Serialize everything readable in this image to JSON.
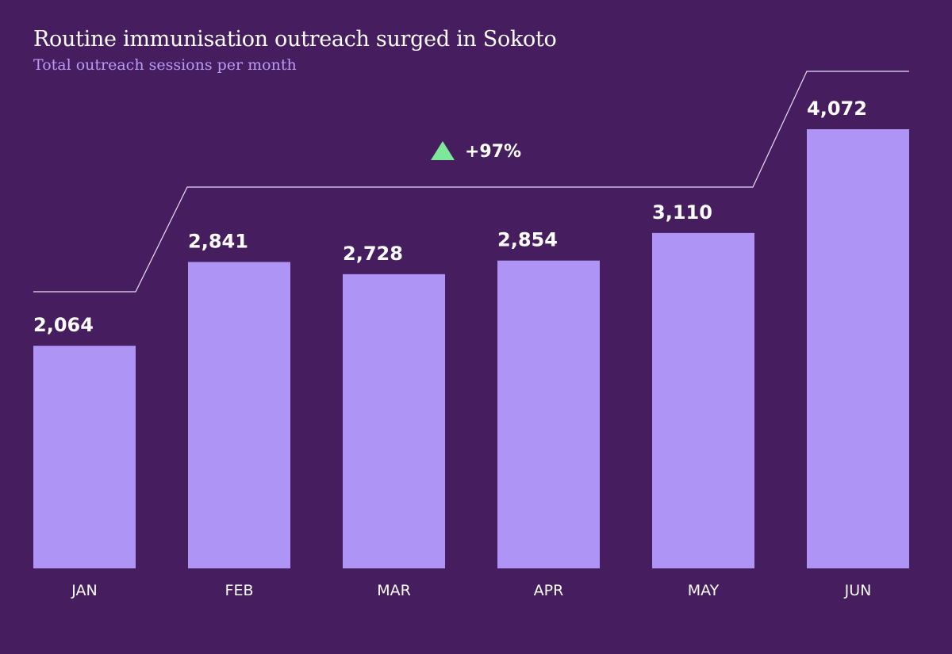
{
  "colors": {
    "background": "#461e5f",
    "bar": "#ad94f5",
    "subtitle": "#b99af7",
    "text": "#ffffff",
    "up_triangle": "#7de89a",
    "bracket_line": "#e9def5"
  },
  "chart_data": {
    "type": "bar",
    "title": "Routine immunisation outreach surged in Sokoto",
    "subtitle": "Total outreach sessions per month",
    "categories": [
      "JAN",
      "FEB",
      "MAR",
      "APR",
      "MAY",
      "JUN"
    ],
    "values": [
      2064,
      2841,
      2728,
      2854,
      3110,
      4072
    ],
    "value_labels": [
      "2,064",
      "2,841",
      "2,728",
      "2,854",
      "3,110",
      "4,072"
    ],
    "xlabel": "",
    "ylabel": "",
    "ylim": [
      0,
      4072
    ],
    "grid": false,
    "annotation": {
      "text": "+97%",
      "icon": "up-triangle-icon",
      "from_category": "JAN",
      "to_category": "JUN"
    }
  }
}
